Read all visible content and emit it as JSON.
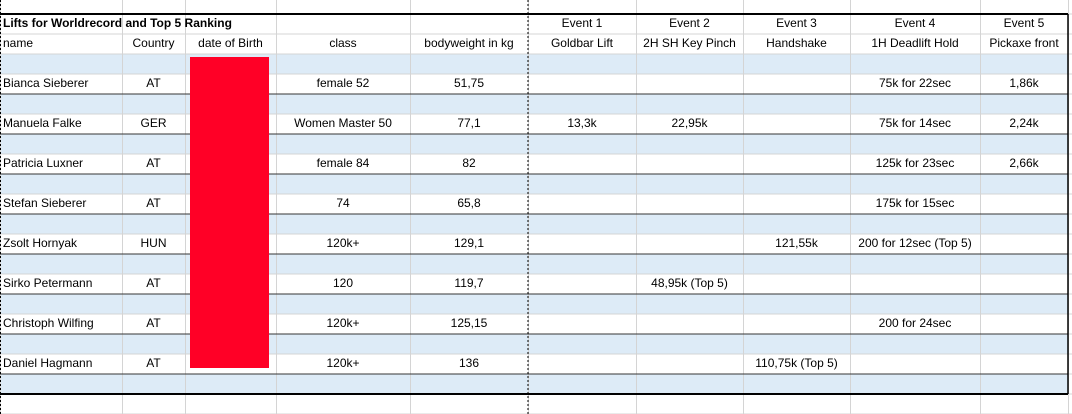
{
  "table": {
    "title": "Lifts for Worldrecord and Top 5 Ranking",
    "columns": [
      "name",
      "Country",
      "date of Birth",
      "class",
      "bodyweight in kg"
    ],
    "events": [
      {
        "label": "Event 1",
        "name": "Goldbar Lift"
      },
      {
        "label": "Event 2",
        "name": "2H SH Key Pinch"
      },
      {
        "label": "Event 3",
        "name": "Handshake"
      },
      {
        "label": "Event 4",
        "name": "1H Deadlift Hold"
      },
      {
        "label": "Event 5",
        "name": "Pickaxe front"
      }
    ],
    "rows": [
      {
        "name": "Bianca Sieberer",
        "country": "AT",
        "class": "female 52",
        "bodyweight": "51,75",
        "event4": "75k for 22sec",
        "event5": "1,86k"
      },
      {
        "name": "Manuela Falke",
        "country": "GER",
        "class": "Women Master 50",
        "bodyweight": "77,1",
        "event1": "13,3k",
        "event2": "22,95k",
        "event4": "75k for 14sec",
        "event5": "2,24k"
      },
      {
        "name": "Patricia Luxner",
        "country": "AT",
        "class": "female 84",
        "bodyweight": "82",
        "event4": "125k for 23sec",
        "event5": "2,66k"
      },
      {
        "name": "Stefan Sieberer",
        "country": "AT",
        "class": "74",
        "bodyweight": "65,8",
        "event4": "175k for 15sec"
      },
      {
        "name": "Zsolt Hornyak",
        "country": "HUN",
        "class": "120k+",
        "bodyweight": "129,1",
        "event3": "121,55k",
        "event4": "200 for 12sec (Top 5)"
      },
      {
        "name": "Sirko Petermann",
        "country": "AT",
        "class": "120",
        "bodyweight": "119,7",
        "event2": "48,95k (Top 5)"
      },
      {
        "name": "Christoph Wilfing",
        "country": "AT",
        "class": "120k+",
        "bodyweight": "125,15",
        "event4": "200 for 24sec"
      },
      {
        "name": "Daniel Hagmann",
        "country": "AT",
        "class": "120k+",
        "bodyweight": "136",
        "event3": "110,75k (Top 5)"
      }
    ]
  }
}
